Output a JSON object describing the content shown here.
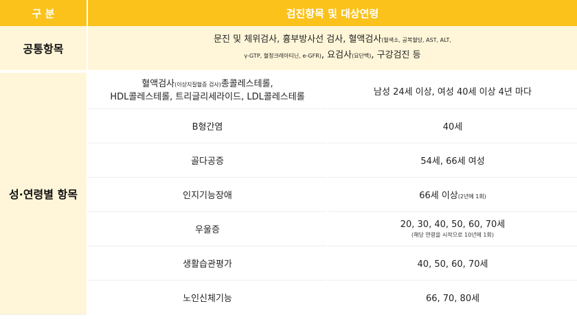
{
  "header": {
    "col1": "구 분",
    "col2": "검진항목 및 대상연령"
  },
  "common": {
    "category": "공통항목",
    "line1_main": "문진 및 체위검사, 흉부방사선 검사, 혈액검사",
    "line1_small": "(혈색소, 공복혈당, AST, ALT,",
    "line2_small_a": "γ-GTP, 혈청크레아티닌, e-GFR)",
    "line2_main_a": ", 요검사",
    "line2_small_b": "(요단백)",
    "line2_main_b": ", 구강검진 등"
  },
  "by_age": {
    "category": "성·연령별 항목",
    "rows": [
      {
        "item_main_a": "혈액검사",
        "item_small": "(이상지질혈증 검사)",
        "item_main_b": "총콜레스테롤,",
        "item_line2": "HDL콜레스테롤, 트리글리세라이드, LDL콜레스테롤",
        "target": "남성 24세 이상, 여성 40세 이상 4년 마다"
      },
      {
        "item": "B형간염",
        "target": "40세"
      },
      {
        "item": "골다공증",
        "target": "54세, 66세 여성"
      },
      {
        "item": "인지기능장애",
        "target_main": "66세 이상",
        "target_small": "(2년에 1회)"
      },
      {
        "item": "우울증",
        "target_main": "20, 30, 40, 50, 60, 70세",
        "target_note": "(해당 연령을 시작으로 10년에 1회)"
      },
      {
        "item": "생활습관평가",
        "target": "40, 50, 60, 70세"
      },
      {
        "item": "노인신체기능",
        "target": "66, 70, 80세"
      }
    ]
  },
  "colors": {
    "header_bg": "#fbc21b",
    "category_bg": "#fff6d9"
  }
}
